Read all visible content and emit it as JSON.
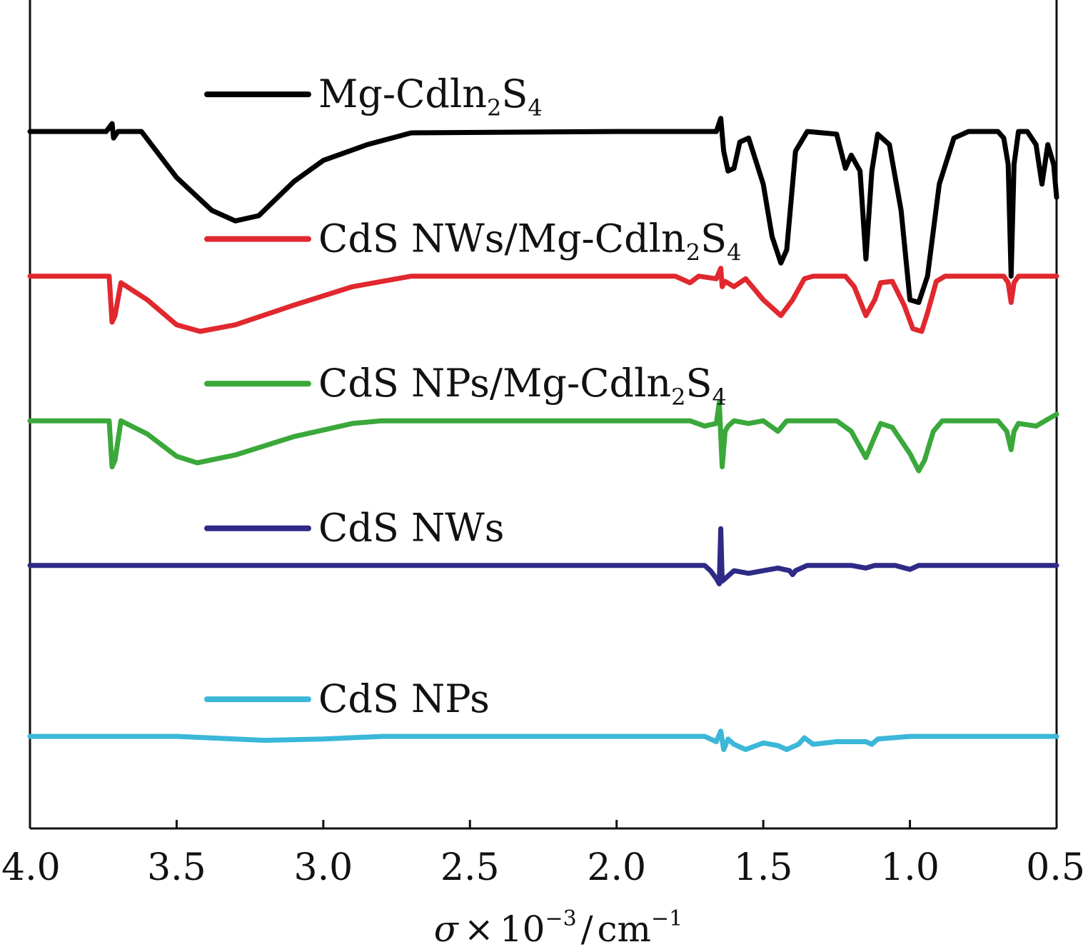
{
  "chart_data": {
    "type": "line",
    "title": "",
    "xlabel": {
      "symbol": "σ",
      "times": "×",
      "base": "10",
      "exponent": "−3",
      "slash": "/",
      "unit": "cm",
      "unit_exponent": "−1"
    },
    "ylabel": "",
    "xlim": [
      4.0,
      0.5
    ],
    "x_ticks": [
      4.0,
      3.5,
      3.0,
      2.5,
      2.0,
      1.5,
      1.0,
      0.5
    ],
    "x_tick_labels": [
      "4.0",
      "3.5",
      "3.0",
      "2.5",
      "2.0",
      "1.5",
      "1.0",
      "0.5"
    ],
    "y_ticks_shown": false,
    "grid": false,
    "legend_placement": "inline-left above each curve",
    "series": [
      {
        "name": "Mg-Cdln2S4",
        "label": {
          "main": "Mg-Cdln",
          "sub1": "2",
          "mid": "S",
          "sub2": "4"
        },
        "color": "#000000",
        "baseline": 5.0,
        "points": [
          [
            4.0,
            5.0
          ],
          [
            3.74,
            5.0
          ],
          [
            3.72,
            5.06
          ],
          [
            3.715,
            4.95
          ],
          [
            3.7,
            5.0
          ],
          [
            3.62,
            5.0
          ],
          [
            3.5,
            4.65
          ],
          [
            3.38,
            4.4
          ],
          [
            3.3,
            4.32
          ],
          [
            3.22,
            4.36
          ],
          [
            3.1,
            4.62
          ],
          [
            3.0,
            4.78
          ],
          [
            2.85,
            4.9
          ],
          [
            2.7,
            4.99
          ],
          [
            2.0,
            5.0
          ],
          [
            1.66,
            5.0
          ],
          [
            1.645,
            5.1
          ],
          [
            1.635,
            4.85
          ],
          [
            1.62,
            4.7
          ],
          [
            1.6,
            4.72
          ],
          [
            1.58,
            4.92
          ],
          [
            1.55,
            4.95
          ],
          [
            1.5,
            4.6
          ],
          [
            1.47,
            4.2
          ],
          [
            1.44,
            4.0
          ],
          [
            1.42,
            4.1
          ],
          [
            1.39,
            4.85
          ],
          [
            1.35,
            5.0
          ],
          [
            1.25,
            4.98
          ],
          [
            1.22,
            4.72
          ],
          [
            1.2,
            4.82
          ],
          [
            1.17,
            4.7
          ],
          [
            1.15,
            4.03
          ],
          [
            1.13,
            4.7
          ],
          [
            1.11,
            4.98
          ],
          [
            1.07,
            4.9
          ],
          [
            1.03,
            4.4
          ],
          [
            1.0,
            3.72
          ],
          [
            0.97,
            3.7
          ],
          [
            0.94,
            3.9
          ],
          [
            0.9,
            4.6
          ],
          [
            0.85,
            4.95
          ],
          [
            0.8,
            5.0
          ],
          [
            0.7,
            5.0
          ],
          [
            0.68,
            4.95
          ],
          [
            0.665,
            4.75
          ],
          [
            0.655,
            3.9
          ],
          [
            0.645,
            4.75
          ],
          [
            0.63,
            5.0
          ],
          [
            0.6,
            5.0
          ],
          [
            0.57,
            4.9
          ],
          [
            0.55,
            4.6
          ],
          [
            0.53,
            4.9
          ],
          [
            0.51,
            4.75
          ],
          [
            0.5,
            4.5
          ]
        ]
      },
      {
        "name": "CdS NWs/Mg-Cdln2S4",
        "label": {
          "main": "CdS NWs/Mg-Cdln",
          "sub1": "2",
          "mid": "S",
          "sub2": "4"
        },
        "color": "#e0282e",
        "baseline": 3.9,
        "points": [
          [
            4.0,
            3.9
          ],
          [
            3.73,
            3.9
          ],
          [
            3.72,
            3.55
          ],
          [
            3.71,
            3.6
          ],
          [
            3.69,
            3.85
          ],
          [
            3.6,
            3.72
          ],
          [
            3.5,
            3.53
          ],
          [
            3.42,
            3.48
          ],
          [
            3.3,
            3.53
          ],
          [
            3.1,
            3.68
          ],
          [
            2.9,
            3.82
          ],
          [
            2.7,
            3.9
          ],
          [
            1.8,
            3.9
          ],
          [
            1.75,
            3.85
          ],
          [
            1.72,
            3.9
          ],
          [
            1.66,
            3.88
          ],
          [
            1.645,
            3.96
          ],
          [
            1.64,
            3.82
          ],
          [
            1.63,
            3.86
          ],
          [
            1.6,
            3.82
          ],
          [
            1.56,
            3.88
          ],
          [
            1.5,
            3.72
          ],
          [
            1.44,
            3.6
          ],
          [
            1.4,
            3.72
          ],
          [
            1.36,
            3.88
          ],
          [
            1.33,
            3.9
          ],
          [
            1.22,
            3.9
          ],
          [
            1.19,
            3.82
          ],
          [
            1.15,
            3.6
          ],
          [
            1.12,
            3.72
          ],
          [
            1.1,
            3.85
          ],
          [
            1.06,
            3.86
          ],
          [
            1.02,
            3.68
          ],
          [
            0.99,
            3.5
          ],
          [
            0.96,
            3.48
          ],
          [
            0.94,
            3.62
          ],
          [
            0.91,
            3.86
          ],
          [
            0.88,
            3.9
          ],
          [
            0.68,
            3.9
          ],
          [
            0.665,
            3.85
          ],
          [
            0.655,
            3.7
          ],
          [
            0.645,
            3.85
          ],
          [
            0.63,
            3.9
          ],
          [
            0.5,
            3.9
          ]
        ]
      },
      {
        "name": "CdS NPs/Mg-Cdln2S4",
        "label": {
          "main": "CdS NPs/Mg-Cdln",
          "sub1": "2",
          "mid": "S",
          "sub2": "4"
        },
        "color": "#3aa83a",
        "baseline": 2.8,
        "points": [
          [
            4.0,
            2.8
          ],
          [
            3.73,
            2.8
          ],
          [
            3.72,
            2.45
          ],
          [
            3.71,
            2.5
          ],
          [
            3.69,
            2.8
          ],
          [
            3.6,
            2.7
          ],
          [
            3.5,
            2.53
          ],
          [
            3.43,
            2.48
          ],
          [
            3.3,
            2.54
          ],
          [
            3.1,
            2.68
          ],
          [
            2.9,
            2.78
          ],
          [
            2.8,
            2.8
          ],
          [
            1.75,
            2.8
          ],
          [
            1.7,
            2.76
          ],
          [
            1.66,
            2.78
          ],
          [
            1.65,
            2.94
          ],
          [
            1.64,
            2.45
          ],
          [
            1.63,
            2.72
          ],
          [
            1.62,
            2.76
          ],
          [
            1.6,
            2.8
          ],
          [
            1.55,
            2.78
          ],
          [
            1.5,
            2.8
          ],
          [
            1.45,
            2.72
          ],
          [
            1.42,
            2.8
          ],
          [
            1.25,
            2.8
          ],
          [
            1.2,
            2.72
          ],
          [
            1.15,
            2.52
          ],
          [
            1.12,
            2.68
          ],
          [
            1.1,
            2.78
          ],
          [
            1.06,
            2.75
          ],
          [
            1.0,
            2.55
          ],
          [
            0.97,
            2.42
          ],
          [
            0.95,
            2.5
          ],
          [
            0.92,
            2.72
          ],
          [
            0.89,
            2.8
          ],
          [
            0.7,
            2.8
          ],
          [
            0.67,
            2.72
          ],
          [
            0.655,
            2.58
          ],
          [
            0.645,
            2.72
          ],
          [
            0.63,
            2.78
          ],
          [
            0.57,
            2.76
          ],
          [
            0.5,
            2.85
          ]
        ]
      },
      {
        "name": "CdS NWs",
        "label": {
          "main": "CdS NWs",
          "sub1": "",
          "mid": "",
          "sub2": "",
          "subscript": false
        },
        "color": "#2e2a86",
        "baseline": 1.7,
        "points": [
          [
            4.0,
            1.7
          ],
          [
            1.7,
            1.7
          ],
          [
            1.68,
            1.66
          ],
          [
            1.66,
            1.6
          ],
          [
            1.65,
            1.56
          ],
          [
            1.645,
            1.98
          ],
          [
            1.64,
            1.58
          ],
          [
            1.62,
            1.62
          ],
          [
            1.6,
            1.66
          ],
          [
            1.55,
            1.64
          ],
          [
            1.5,
            1.66
          ],
          [
            1.45,
            1.68
          ],
          [
            1.41,
            1.66
          ],
          [
            1.4,
            1.63
          ],
          [
            1.39,
            1.66
          ],
          [
            1.35,
            1.7
          ],
          [
            1.2,
            1.7
          ],
          [
            1.15,
            1.68
          ],
          [
            1.12,
            1.7
          ],
          [
            1.05,
            1.7
          ],
          [
            1.0,
            1.67
          ],
          [
            0.97,
            1.7
          ],
          [
            0.5,
            1.7
          ]
        ]
      },
      {
        "name": "CdS NPs",
        "label": {
          "main": "CdS NPs",
          "sub1": "",
          "mid": "",
          "sub2": "",
          "subscript": false
        },
        "color": "#3bb7d8",
        "baseline": 0.4,
        "points": [
          [
            4.0,
            0.4
          ],
          [
            3.5,
            0.4
          ],
          [
            3.2,
            0.37
          ],
          [
            3.0,
            0.38
          ],
          [
            2.8,
            0.4
          ],
          [
            1.7,
            0.4
          ],
          [
            1.66,
            0.36
          ],
          [
            1.645,
            0.44
          ],
          [
            1.635,
            0.3
          ],
          [
            1.62,
            0.38
          ],
          [
            1.6,
            0.34
          ],
          [
            1.56,
            0.3
          ],
          [
            1.5,
            0.35
          ],
          [
            1.45,
            0.33
          ],
          [
            1.42,
            0.3
          ],
          [
            1.38,
            0.34
          ],
          [
            1.36,
            0.39
          ],
          [
            1.33,
            0.34
          ],
          [
            1.25,
            0.36
          ],
          [
            1.15,
            0.36
          ],
          [
            1.13,
            0.34
          ],
          [
            1.11,
            0.38
          ],
          [
            1.0,
            0.4
          ],
          [
            0.5,
            0.4
          ]
        ]
      }
    ]
  }
}
